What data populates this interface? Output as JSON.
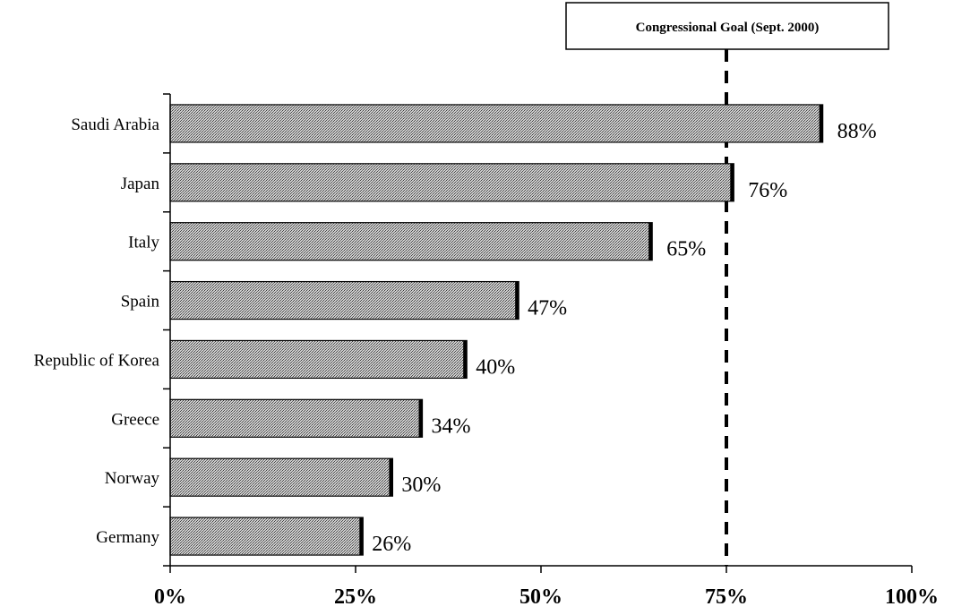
{
  "chart_data": {
    "type": "bar",
    "orientation": "horizontal",
    "categories": [
      "Saudi Arabia",
      "Japan",
      "Italy",
      "Spain",
      "Republic of Korea",
      "Greece",
      "Norway",
      "Germany"
    ],
    "values": [
      88,
      76,
      65,
      47,
      40,
      34,
      30,
      26
    ],
    "value_labels": [
      "88%",
      "76%",
      "65%",
      "47%",
      "40%",
      "34%",
      "30%",
      "26%"
    ],
    "xlim": [
      0,
      100
    ],
    "xticks": [
      0,
      25,
      50,
      75,
      100
    ],
    "xtick_labels": [
      "0%",
      "25%",
      "50%",
      "75%",
      "100%"
    ],
    "reference_line": {
      "value": 75,
      "label": "Congressional Goal (Sept. 2000)",
      "style": "dashed"
    },
    "grid": false,
    "legend": "none",
    "colors": {
      "bar_fill": "#c8c8c8",
      "bar_pattern": "#555555",
      "bar_edge": "#000000"
    }
  }
}
